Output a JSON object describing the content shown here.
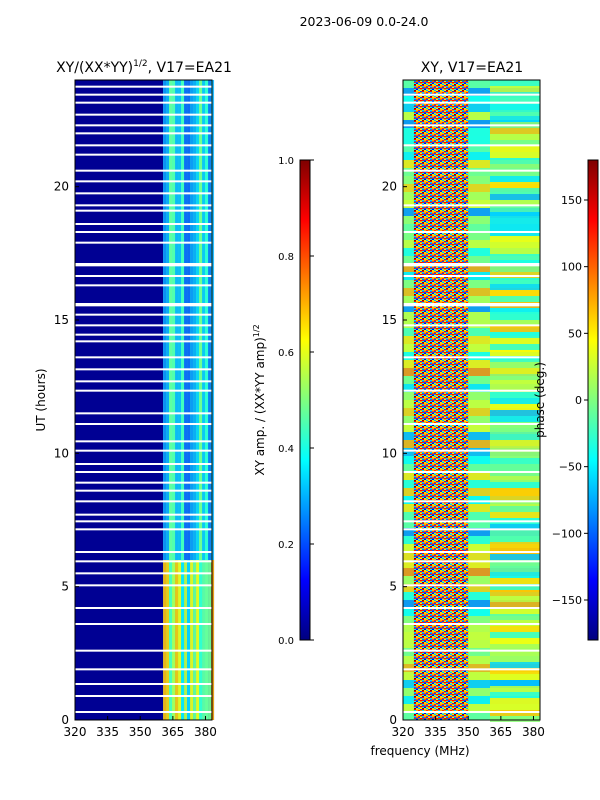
{
  "suptitle": "2023-06-09 0.0-24.0",
  "chart_data": [
    {
      "type": "heatmap",
      "title": "XY/(XX*YY)",
      "title_exponent": "1/2",
      "title_suffix": ", V17=EA21",
      "xlabel": "",
      "ylabel": "UT (hours)",
      "xlim": [
        320,
        383
      ],
      "ylim": [
        0,
        24
      ],
      "xticks": [
        320,
        335,
        350,
        365,
        380
      ],
      "yticks": [
        0,
        5,
        10,
        15,
        20
      ],
      "colorbar": {
        "label": "XY amp. / (XX*YY amp)",
        "label_exponent": "1/2",
        "range": [
          0.0,
          1.0
        ],
        "ticks": [
          "0.0",
          "0.2",
          "0.4",
          "0.6",
          "0.8",
          "1.0"
        ],
        "colormap": "jet"
      },
      "colormap_stops": [
        "#00007f",
        "#0000ff",
        "#007fff",
        "#00ffff",
        "#7fff7f",
        "#ffff00",
        "#ff7f00",
        "#ff0000",
        "#7f0000"
      ],
      "description_values": {
        "bands": [
          {
            "x_from": 320,
            "x_to": 360.5,
            "level": 0.02
          },
          {
            "x_from": 360.5,
            "x_to": 383,
            "level": 0.45
          }
        ],
        "low_ut_enhanced_hours": [
          0,
          6
        ],
        "flagged_rows_hours": [
          0.3,
          0.9,
          1.35,
          1.9,
          2.6,
          3.6,
          4.2,
          5.05,
          5.5,
          5.95,
          6.3,
          7.15,
          7.45,
          7.7,
          8.2,
          8.6,
          8.9,
          9.3,
          9.6,
          10.1,
          10.45,
          11.1,
          11.5,
          12.35,
          12.7,
          13.15,
          13.6,
          14.2,
          14.45,
          14.8,
          15.2,
          15.55,
          15.6,
          16.3,
          16.65,
          17.05,
          17.1,
          17.9,
          18.3,
          18.6,
          19.1,
          19.3,
          19.75,
          20.2,
          20.6,
          21.2,
          21.55,
          22.0,
          22.3,
          22.7,
          23.15,
          23.45,
          23.75
        ]
      }
    },
    {
      "type": "heatmap",
      "title": "XY, V17=EA21",
      "xlabel": "frequency (MHz)",
      "ylabel": "",
      "xlim": [
        320,
        383
      ],
      "ylim": [
        0,
        24
      ],
      "xticks": [
        320,
        335,
        350,
        365,
        380
      ],
      "yticks": [
        0,
        5,
        10,
        15,
        20
      ],
      "colorbar": {
        "label": "phase (deg.)",
        "range": [
          -180,
          180
        ],
        "ticks": [
          "−150",
          "−100",
          "−50",
          "0",
          "50",
          "100",
          "150"
        ],
        "tick_values": [
          -150,
          -100,
          -50,
          0,
          50,
          100,
          150
        ],
        "colormap": "jet"
      },
      "colormap_stops": [
        "#00007f",
        "#0000ff",
        "#007fff",
        "#00ffff",
        "#7fff7f",
        "#ffff00",
        "#ff7f00",
        "#ff0000",
        "#7f0000"
      ],
      "description_values": {
        "noisy_band_mhz": [
          325,
          350
        ],
        "smooth_band_mhz": [
          360,
          383
        ],
        "flagged_rows_hours": [
          0.3,
          1.9,
          2.6,
          3.6,
          4.2,
          5.05,
          5.95,
          6.3,
          7.15,
          7.45,
          8.2,
          9.3,
          10.1,
          11.1,
          12.35,
          13.6,
          14.8,
          15.55,
          15.6,
          16.65,
          17.05,
          17.1,
          18.3,
          19.3,
          20.6,
          21.55,
          22.3,
          23.15,
          23.45
        ]
      }
    }
  ]
}
